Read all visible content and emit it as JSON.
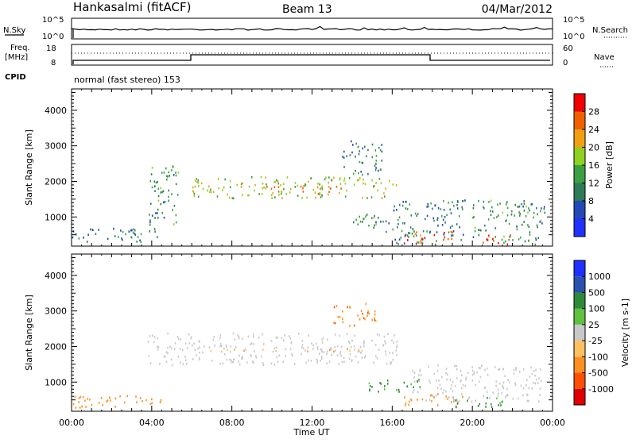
{
  "header": {
    "title": "Hankasalmi (fitACF)",
    "beam": "Beam 13",
    "date": "04/Mar/2012"
  },
  "noise_panel": {
    "left_label": "N.Sky",
    "left_ticks": [
      "10^5",
      "10^0"
    ],
    "right_label": "N.Search",
    "right_ticks": [
      "10^5",
      "10^0"
    ]
  },
  "freq_panel": {
    "left_label_line1": "Freq.",
    "left_label_line2": "[MHz]",
    "left_ticks": [
      "18",
      "8"
    ],
    "right_label": "Nave",
    "right_ticks": [
      "60",
      "0"
    ],
    "cpid_label": "CPID",
    "cpid_text": "normal (fast stereo) 153"
  },
  "colors": {
    "power_scale": [
      "#2030ff",
      "#2448b8",
      "#2e7a5a",
      "#3aa040",
      "#90d020",
      "#f0a010",
      "#f06000",
      "#f00000"
    ],
    "velocity_scale": [
      "#e00000",
      "#ff5000",
      "#ff9020",
      "#ffc060",
      "#c8c8c8",
      "#60c040",
      "#2e8a3a",
      "#2a50b0",
      "#2030ff"
    ],
    "ground_scatter": "#c8c8c8"
  },
  "chart_data": [
    {
      "type": "heatmap",
      "panel": "power",
      "ylabel": "Slant Range [km]",
      "ylim": [
        180,
        4600
      ],
      "yticks": [
        "1000",
        "2000",
        "3000",
        "4000"
      ],
      "xlim_hours": [
        0,
        24
      ],
      "colorbar_label": "Power [dB]",
      "colorbar_ticks": [
        "4",
        "8",
        "12",
        "16",
        "20",
        "24",
        "28"
      ],
      "colorbar_range": [
        0,
        32
      ],
      "features": [
        {
          "t0": 0.0,
          "t1": 4.3,
          "r0": 280,
          "r1": 700,
          "level": 10
        },
        {
          "t0": 3.8,
          "t1": 5.4,
          "r0": 800,
          "r1": 2500,
          "level": 12
        },
        {
          "t0": 6.0,
          "t1": 16.2,
          "r0": 1550,
          "r1": 2150,
          "level": 18
        },
        {
          "t0": 9.5,
          "t1": 14.0,
          "r0": 1650,
          "r1": 1900,
          "level": 24
        },
        {
          "t0": 13.5,
          "t1": 15.5,
          "r0": 2200,
          "r1": 3200,
          "level": 10
        },
        {
          "t0": 14.0,
          "t1": 16.5,
          "r0": 600,
          "r1": 1100,
          "level": 12
        },
        {
          "t0": 16.0,
          "t1": 19.6,
          "r0": 250,
          "r1": 1500,
          "level": 10
        },
        {
          "t0": 16.5,
          "t1": 19.0,
          "r0": 300,
          "r1": 650,
          "level": 26
        },
        {
          "t0": 20.0,
          "t1": 23.6,
          "r0": 250,
          "r1": 1500,
          "level": 12
        },
        {
          "t0": 20.5,
          "t1": 22.0,
          "r0": 250,
          "r1": 550,
          "level": 28
        }
      ]
    },
    {
      "type": "heatmap",
      "panel": "velocity",
      "xlabel": "Time UT",
      "ylabel": "Slant Range [km]",
      "ylim": [
        180,
        4600
      ],
      "yticks": [
        "1000",
        "2000",
        "3000",
        "4000"
      ],
      "xticks": [
        "00:00",
        "04:00",
        "08:00",
        "12:00",
        "16:00",
        "20:00",
        "00:00"
      ],
      "xlim_hours": [
        0,
        24
      ],
      "colorbar_label": "Velocity [m s-1]",
      "colorbar_ticks": [
        "1000",
        "500",
        "100",
        "25",
        "-25",
        "-100",
        "-500",
        "-1000"
      ],
      "features": [
        {
          "t0": 0.0,
          "t1": 4.5,
          "r0": 280,
          "r1": 650,
          "vel": -300
        },
        {
          "t0": 3.8,
          "t1": 16.3,
          "r0": 1500,
          "r1": 2400,
          "vel": 0
        },
        {
          "t0": 6.0,
          "t1": 14.5,
          "r0": 1880,
          "r1": 1960,
          "vel": -80
        },
        {
          "t0": 13.0,
          "t1": 15.2,
          "r0": 2600,
          "r1": 3250,
          "vel": -400
        },
        {
          "t0": 14.5,
          "t1": 17.5,
          "r0": 750,
          "r1": 1100,
          "vel": 150
        },
        {
          "t0": 16.5,
          "t1": 19.5,
          "r0": 350,
          "r1": 700,
          "vel": -200
        },
        {
          "t0": 17.0,
          "t1": 23.5,
          "r0": 450,
          "r1": 1500,
          "vel": 0
        },
        {
          "t0": 19.0,
          "t1": 21.5,
          "r0": 300,
          "r1": 600,
          "vel": 150
        }
      ]
    }
  ]
}
